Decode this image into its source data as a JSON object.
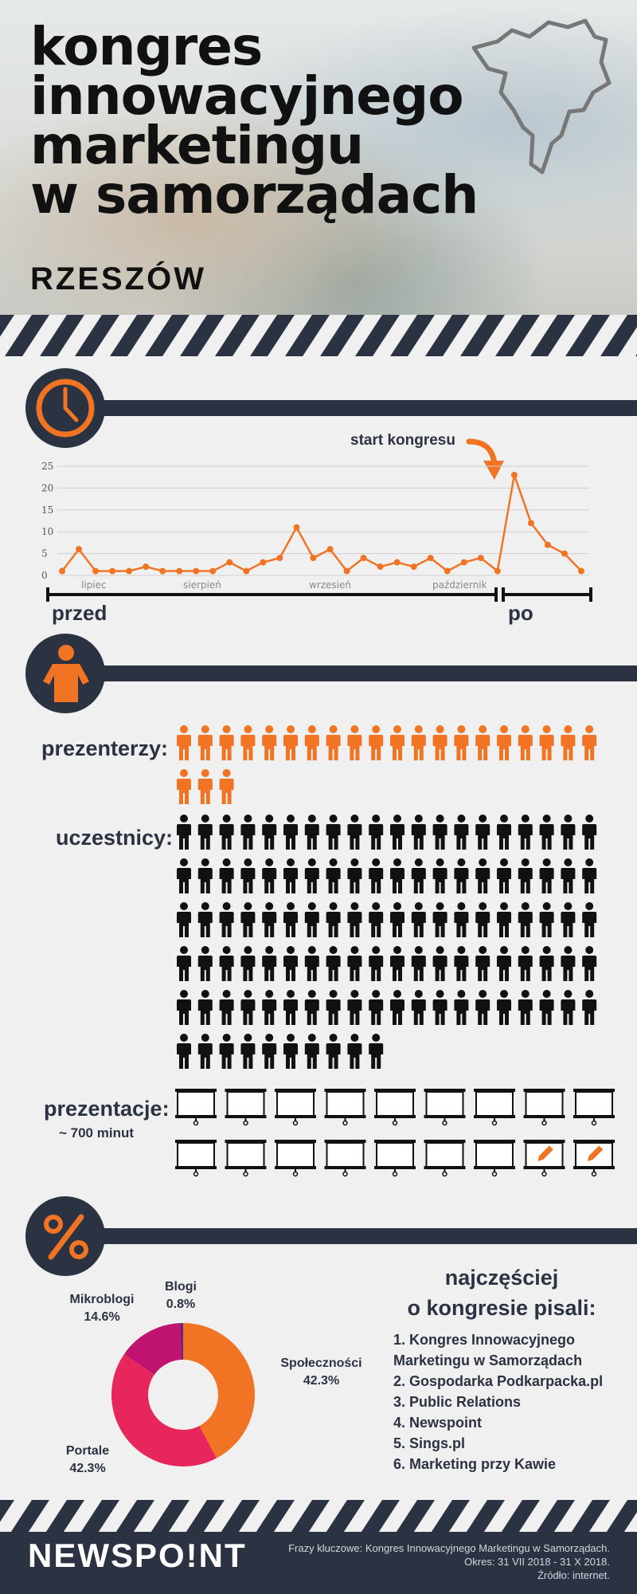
{
  "header": {
    "title_lines": [
      "kongres",
      "innowacyjnego",
      "marketingu",
      "w samorządach"
    ],
    "city": "RZESZÓW",
    "map_icon": "region-outline-icon"
  },
  "sections": {
    "timeline_icon": "clock-icon",
    "people_icon": "person-icon",
    "share_icon": "percent-icon"
  },
  "chart_data": [
    {
      "type": "line",
      "annotation": "start kongresu",
      "y_ticks": [
        "25",
        "20",
        "15",
        "10",
        "5",
        "0"
      ],
      "ylim": [
        0,
        25
      ],
      "grid": true,
      "month_labels": [
        "lipiec",
        "sierpień",
        "wrzesień",
        "październik"
      ],
      "values": [
        1,
        6,
        1,
        1,
        1,
        2,
        1,
        1,
        1,
        1,
        3,
        1,
        3,
        4,
        11,
        4,
        6,
        1,
        4,
        2,
        3,
        2,
        4,
        1,
        3,
        4,
        1,
        23,
        12,
        7,
        5,
        1
      ],
      "before_label": "przed",
      "after_label": "po",
      "color": "#f07424"
    },
    {
      "type": "pie",
      "slices": [
        {
          "label": "Społeczności",
          "value": 42.3,
          "display": "42.3%",
          "color": "#f07424"
        },
        {
          "label": "Portale",
          "value": 42.3,
          "display": "42.3%",
          "color": "#e8265e"
        },
        {
          "label": "Mikroblogi",
          "value": 14.6,
          "display": "14.6%",
          "color": "#c0136f"
        },
        {
          "label": "Blogi",
          "value": 0.8,
          "display": "0.8%",
          "color": "#7a1e77"
        }
      ]
    }
  ],
  "people": {
    "presenters_label": "prezenterzy:",
    "presenters_count": 23,
    "participants_label": "uczestnicy:",
    "participants_count": 110,
    "presenter_color": "#f07424",
    "participant_color": "#111111"
  },
  "presentations": {
    "label": "prezentacje:",
    "sublabel": "~ 700 minut",
    "boards_count": 18,
    "boards_with_pencil": 2,
    "board_icon": "presentation-board-icon",
    "pencil_icon": "pencil-icon"
  },
  "sources": {
    "heading_line1": "najczęściej",
    "heading_line2": "o kongresie pisali:",
    "items": [
      "1. Kongres Innowacyjnego Marketingu w Samorządach",
      "2. Gospodarka Podkarpacka.pl",
      "3. Public Relations",
      "4. Newspoint",
      "5. Sings.pl",
      "6. Marketing przy Kawie"
    ]
  },
  "footer": {
    "brand": "NEWSPO!NT",
    "keywords": "Frazy kluczowe: Kongres Innowacyjnego Marketingu w Samorządach.",
    "period": "Okres: 31 VII 2018 - 31 X 2018.",
    "source": "Źródło: internet."
  },
  "colors": {
    "accent": "#f07424",
    "dark": "#2b3242",
    "background": "#f0f0f0"
  }
}
